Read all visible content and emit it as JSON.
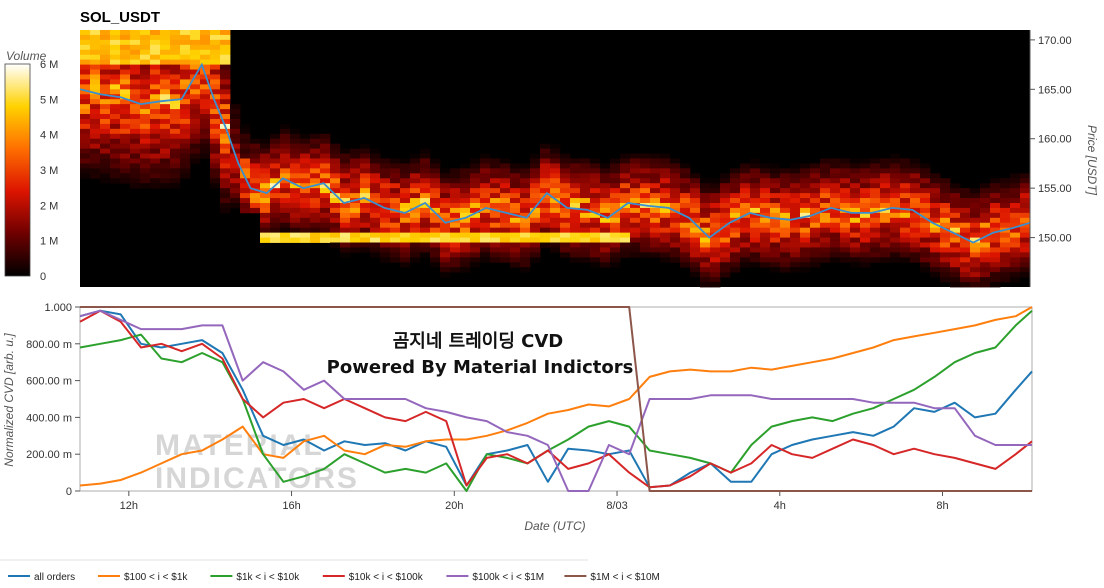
{
  "chart_data": [
    {
      "type": "heatmap",
      "title": "SOL_USDT",
      "colorbar": {
        "label": "Volume",
        "ticks": [
          "0",
          "1 M",
          "2 M",
          "3 M",
          "4 M",
          "5 M",
          "6 M"
        ],
        "ticks_value": [
          0,
          1000000,
          2000000,
          3000000,
          4000000,
          5000000,
          6000000
        ]
      },
      "ylabel": "Price [USDT]",
      "ylim": [
        145.0,
        171.0
      ],
      "yticks": [
        "150.00",
        "155.00",
        "160.00",
        "165.00",
        "170.00"
      ],
      "yticks_value": [
        150,
        155,
        160,
        165,
        170
      ],
      "xlim_hours": [
        10.8,
        34.2
      ],
      "price_series": {
        "name": "price",
        "color": "#3a8fd0",
        "t": [
          10.8,
          11.3,
          11.8,
          12.3,
          12.8,
          13.3,
          13.8,
          14.1,
          14.4,
          14.7,
          15.0,
          15.4,
          15.8,
          16.3,
          16.8,
          17.3,
          17.8,
          18.3,
          18.8,
          19.3,
          19.8,
          20.3,
          20.8,
          21.3,
          21.8,
          22.3,
          22.8,
          23.3,
          23.8,
          24.3,
          24.8,
          25.3,
          25.8,
          26.3,
          26.8,
          27.3,
          27.8,
          28.3,
          28.8,
          29.3,
          29.8,
          30.3,
          30.8,
          31.3,
          31.8,
          32.3,
          32.8,
          33.3,
          33.8,
          34.2
        ],
        "v": [
          165,
          164.5,
          164.2,
          163.5,
          163.8,
          164,
          167.5,
          164,
          161,
          157.5,
          155,
          154.5,
          156,
          155,
          155.5,
          153.5,
          154,
          153,
          152.5,
          153.5,
          151.5,
          152,
          153,
          152.5,
          152,
          154.5,
          153,
          152.8,
          152,
          153.5,
          153.2,
          153,
          152,
          150,
          151.5,
          152.5,
          152,
          151.8,
          152.2,
          153,
          152.5,
          152.5,
          153,
          152.8,
          151.5,
          150.5,
          149.5,
          150.5,
          151,
          151.5
        ]
      }
    },
    {
      "type": "line",
      "ylabel": "Normalized CVD [arb. u.]",
      "xlabel": "Date (UTC)",
      "ylim": [
        0,
        1.0
      ],
      "yticks": [
        "0",
        "200.00 m",
        "400.00 m",
        "600.00 m",
        "800.00 m",
        "1.000"
      ],
      "yticks_value": [
        0,
        0.2,
        0.4,
        0.6,
        0.8,
        1.0
      ],
      "xlim_hours": [
        10.8,
        34.2
      ],
      "xticks": [
        "12h",
        "16h",
        "20h",
        "8/03",
        "4h",
        "8h"
      ],
      "xticks_value": [
        12,
        16,
        20,
        24,
        28,
        32
      ],
      "annotation": [
        "곰지네 트레이딩 CVD",
        "Powered By Material Indictors"
      ],
      "watermark": [
        "MATERIAL",
        "INDICATORS"
      ],
      "t": [
        10.8,
        11.3,
        11.8,
        12.3,
        12.8,
        13.3,
        13.8,
        14.3,
        14.8,
        15.3,
        15.8,
        16.3,
        16.8,
        17.3,
        17.8,
        18.3,
        18.8,
        19.3,
        19.8,
        20.3,
        20.8,
        21.3,
        21.8,
        22.3,
        22.8,
        23.3,
        23.8,
        24.3,
        24.8,
        25.3,
        25.8,
        26.3,
        26.8,
        27.3,
        27.8,
        28.3,
        28.8,
        29.3,
        29.8,
        30.3,
        30.8,
        31.3,
        31.8,
        32.3,
        32.8,
        33.3,
        33.8,
        34.2
      ],
      "series": [
        {
          "name": "all orders",
          "color": "#1f77b4",
          "values": [
            0.95,
            0.98,
            0.96,
            0.8,
            0.78,
            0.8,
            0.82,
            0.75,
            0.55,
            0.3,
            0.25,
            0.28,
            0.22,
            0.27,
            0.25,
            0.26,
            0.22,
            0.27,
            0.24,
            0.03,
            0.2,
            0.22,
            0.25,
            0.05,
            0.23,
            0.22,
            0.2,
            0.22,
            0.02,
            0.03,
            0.1,
            0.15,
            0.05,
            0.05,
            0.2,
            0.25,
            0.28,
            0.3,
            0.32,
            0.3,
            0.35,
            0.45,
            0.43,
            0.48,
            0.4,
            0.42,
            0.55,
            0.65
          ]
        },
        {
          "name": "$100 < i < $1k",
          "color": "#ff7f0e",
          "values": [
            0.03,
            0.04,
            0.06,
            0.1,
            0.15,
            0.2,
            0.22,
            0.28,
            0.35,
            0.2,
            0.18,
            0.27,
            0.3,
            0.22,
            0.2,
            0.25,
            0.24,
            0.27,
            0.28,
            0.28,
            0.3,
            0.33,
            0.37,
            0.42,
            0.44,
            0.47,
            0.46,
            0.5,
            0.62,
            0.65,
            0.66,
            0.65,
            0.65,
            0.67,
            0.66,
            0.68,
            0.7,
            0.72,
            0.75,
            0.78,
            0.82,
            0.84,
            0.86,
            0.88,
            0.9,
            0.93,
            0.95,
            1.0
          ]
        },
        {
          "name": "$1k < i < $10k",
          "color": "#2ca02c",
          "values": [
            0.78,
            0.8,
            0.82,
            0.85,
            0.72,
            0.7,
            0.75,
            0.7,
            0.5,
            0.2,
            0.05,
            0.08,
            0.12,
            0.2,
            0.15,
            0.1,
            0.12,
            0.1,
            0.15,
            0.0,
            0.2,
            0.18,
            0.15,
            0.22,
            0.28,
            0.35,
            0.38,
            0.35,
            0.22,
            0.2,
            0.18,
            0.15,
            0.1,
            0.25,
            0.35,
            0.38,
            0.4,
            0.38,
            0.42,
            0.45,
            0.5,
            0.55,
            0.62,
            0.7,
            0.75,
            0.78,
            0.9,
            0.98
          ]
        },
        {
          "name": "$10k < i < $100k",
          "color": "#d62728",
          "values": [
            0.92,
            0.98,
            0.92,
            0.78,
            0.8,
            0.76,
            0.8,
            0.72,
            0.5,
            0.4,
            0.48,
            0.5,
            0.45,
            0.5,
            0.45,
            0.4,
            0.38,
            0.43,
            0.38,
            0.03,
            0.18,
            0.2,
            0.15,
            0.22,
            0.12,
            0.15,
            0.2,
            0.1,
            0.02,
            0.03,
            0.08,
            0.15,
            0.1,
            0.15,
            0.25,
            0.2,
            0.18,
            0.23,
            0.28,
            0.25,
            0.2,
            0.23,
            0.2,
            0.18,
            0.15,
            0.12,
            0.2,
            0.27
          ]
        },
        {
          "name": "$100k < i < $1M",
          "color": "#9467bd",
          "values": [
            0.95,
            0.98,
            0.93,
            0.88,
            0.88,
            0.88,
            0.9,
            0.9,
            0.6,
            0.7,
            0.65,
            0.55,
            0.6,
            0.5,
            0.5,
            0.5,
            0.5,
            0.45,
            0.43,
            0.4,
            0.38,
            0.32,
            0.3,
            0.25,
            0.0,
            0.0,
            0.25,
            0.2,
            0.5,
            0.5,
            0.5,
            0.52,
            0.52,
            0.52,
            0.5,
            0.5,
            0.5,
            0.5,
            0.5,
            0.48,
            0.48,
            0.48,
            0.45,
            0.45,
            0.3,
            0.25,
            0.25,
            0.25
          ]
        },
        {
          "name": "$1M < i < $10M",
          "color": "#8c564b",
          "values": [
            1.0,
            1.0,
            1.0,
            1.0,
            1.0,
            1.0,
            1.0,
            1.0,
            1.0,
            1.0,
            1.0,
            1.0,
            1.0,
            1.0,
            1.0,
            1.0,
            1.0,
            1.0,
            1.0,
            1.0,
            1.0,
            1.0,
            1.0,
            1.0,
            1.0,
            1.0,
            1.0,
            1.0,
            0.0,
            0.0,
            0.0,
            0.0,
            0.0,
            0.0,
            0.0,
            0.0,
            0.0,
            0.0,
            0.0,
            0.0,
            0.0,
            0.0,
            0.0,
            0.0,
            0.0,
            0.0,
            0.0,
            0.0
          ]
        }
      ],
      "legend_placement": "bottom-left"
    }
  ]
}
